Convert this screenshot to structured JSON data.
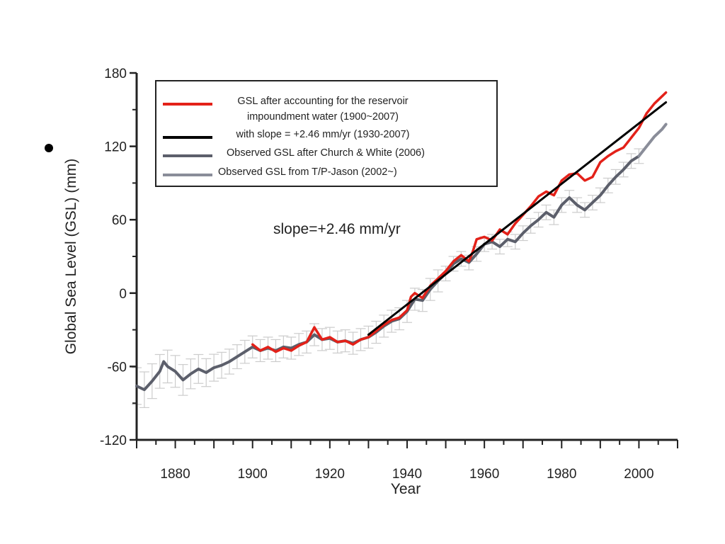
{
  "chart_data": {
    "type": "line",
    "xlabel": "Year",
    "ylabel": "Global Sea Level (GSL)  (mm)",
    "xlim": [
      1870,
      2010
    ],
    "ylim": [
      -120,
      180
    ],
    "x_ticks": [
      1880,
      1900,
      1920,
      1940,
      1960,
      1980,
      2000
    ],
    "x_tick_labels": [
      "1880",
      "1900",
      "1920",
      "1940",
      "1960",
      "1980",
      "2000"
    ],
    "y_ticks": [
      -120,
      -60,
      0,
      60,
      120,
      180
    ],
    "y_tick_labels": [
      "-120",
      "-60",
      "0",
      "60",
      "120",
      "180"
    ],
    "grid": false,
    "legend_position": "top-left",
    "legend": [
      {
        "lines": [
          "GSL after accounting for the reservoir",
          "impoundment water (1900~2007)"
        ],
        "color": "#e32119"
      },
      {
        "lines": [
          "with slope = +2.46 mm/yr (1930-2007)"
        ],
        "color": "#000000"
      },
      {
        "lines": [
          "Observed GSL after Church & White (2006)"
        ],
        "color": "#5c5f6b"
      },
      {
        "lines": [
          "Observed GSL from T/P-Jason (2002~)"
        ],
        "color": "#8a8d99"
      }
    ],
    "annotation": "slope=+2.46 mm/yr",
    "series": [
      {
        "color": "#e32119",
        "x": [
          1900,
          1902,
          1904,
          1906,
          1908,
          1910,
          1912,
          1914,
          1915,
          1916,
          1918,
          1920,
          1922,
          1924,
          1926,
          1928,
          1930,
          1932,
          1934,
          1936,
          1938,
          1940,
          1941,
          1942,
          1944,
          1946,
          1948,
          1950,
          1952,
          1954,
          1956,
          1957,
          1958,
          1960,
          1962,
          1964,
          1966,
          1968,
          1970,
          1972,
          1974,
          1976,
          1978,
          1980,
          1982,
          1984,
          1986,
          1988,
          1990,
          1992,
          1994,
          1996,
          1998,
          2000,
          2002,
          2004,
          2006,
          2007
        ],
        "values": [
          -42,
          -47,
          -44,
          -48,
          -45,
          -47,
          -43,
          -40,
          -34,
          -28,
          -38,
          -36,
          -40,
          -39,
          -42,
          -38,
          -36,
          -31,
          -26,
          -22,
          -20,
          -14,
          -3,
          0,
          -4,
          6,
          12,
          18,
          26,
          31,
          26,
          34,
          44,
          46,
          43,
          52,
          48,
          57,
          64,
          71,
          79,
          83,
          80,
          92,
          97,
          98,
          92,
          95,
          107,
          112,
          116,
          119,
          127,
          135,
          147,
          155,
          161,
          164
        ]
      },
      {
        "color": "#000000",
        "x": [
          1930,
          2007
        ],
        "values": [
          -34,
          156
        ]
      },
      {
        "color": "#5c5f6b",
        "x": [
          1870,
          1872,
          1874,
          1876,
          1877,
          1878,
          1880,
          1882,
          1884,
          1886,
          1888,
          1890,
          1892,
          1894,
          1896,
          1898,
          1900,
          1902,
          1904,
          1906,
          1908,
          1910,
          1912,
          1914,
          1916,
          1918,
          1920,
          1922,
          1924,
          1926,
          1928,
          1930,
          1932,
          1934,
          1936,
          1938,
          1940,
          1942,
          1944,
          1946,
          1948,
          1950,
          1952,
          1954,
          1956,
          1958,
          1960,
          1962,
          1964,
          1966,
          1968,
          1970,
          1972,
          1974,
          1976,
          1978,
          1980,
          1982,
          1984,
          1986,
          1988,
          1990,
          1992,
          1994,
          1996,
          1998,
          2000
        ],
        "values": [
          -76,
          -79,
          -72,
          -64,
          -56,
          -60,
          -64,
          -71,
          -66,
          -62,
          -65,
          -61,
          -59,
          -56,
          -52,
          -48,
          -44,
          -47,
          -45,
          -47,
          -44,
          -45,
          -42,
          -40,
          -34,
          -38,
          -37,
          -40,
          -39,
          -41,
          -38,
          -36,
          -32,
          -27,
          -23,
          -21,
          -15,
          -5,
          -6,
          3,
          10,
          16,
          24,
          28,
          25,
          32,
          40,
          42,
          38,
          44,
          42,
          49,
          55,
          60,
          66,
          62,
          72,
          78,
          72,
          68,
          74,
          80,
          88,
          95,
          101,
          108,
          112
        ]
      },
      {
        "color": "#8a8d99",
        "x": [
          2000,
          2002,
          2004,
          2006,
          2007
        ],
        "values": [
          112,
          120,
          128,
          134,
          138
        ]
      }
    ]
  }
}
